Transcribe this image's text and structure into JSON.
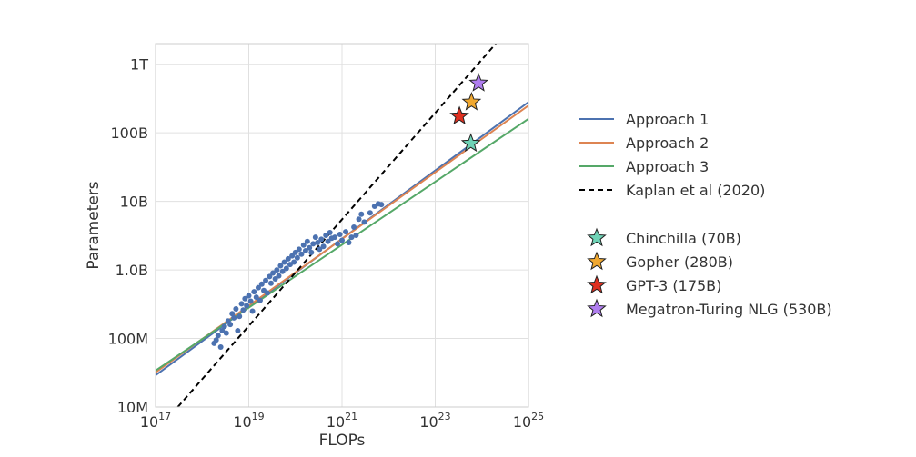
{
  "chart_data": {
    "type": "scatter",
    "xlabel": "FLOPs",
    "ylabel": "Parameters",
    "x_scale": "log",
    "y_scale": "log",
    "xlim": [
      1e+17,
      1e+25
    ],
    "ylim": [
      10000000.0,
      2000000000000.0
    ],
    "grid": true,
    "legend_position": "right",
    "x_ticks": [
      {
        "value": 1e+17,
        "base": "10",
        "exp": "17"
      },
      {
        "value": 1e+19,
        "base": "10",
        "exp": "19"
      },
      {
        "value": 1e+21,
        "base": "10",
        "exp": "21"
      },
      {
        "value": 1e+23,
        "base": "10",
        "exp": "23"
      },
      {
        "value": 1e+25,
        "base": "10",
        "exp": "25"
      }
    ],
    "y_ticks": [
      {
        "value": 10000000.0,
        "label": "10M"
      },
      {
        "value": 100000000.0,
        "label": "100M"
      },
      {
        "value": 1000000000.0,
        "label": "1.0B"
      },
      {
        "value": 10000000000.0,
        "label": "10B"
      },
      {
        "value": 100000000000.0,
        "label": "100B"
      },
      {
        "value": 1000000000000.0,
        "label": "1T"
      }
    ],
    "lines": [
      {
        "name": "Approach 1",
        "color": "#4c72b0",
        "dash": false,
        "points": [
          [
            1e+17,
            29000000.0
          ],
          [
            1e+25,
            280000000000.0
          ]
        ]
      },
      {
        "name": "Approach 2",
        "color": "#dd8452",
        "dash": false,
        "points": [
          [
            1e+17,
            32000000.0
          ],
          [
            1e+25,
            250000000000.0
          ]
        ]
      },
      {
        "name": "Approach 3",
        "color": "#55a868",
        "dash": false,
        "points": [
          [
            1e+17,
            34000000.0
          ],
          [
            1e+25,
            160000000000.0
          ]
        ]
      },
      {
        "name": "Kaplan et al (2020)",
        "color": "#000000",
        "dash": true,
        "points": [
          [
            3e+17,
            10000000.0
          ],
          [
            2e+24,
            2000000000000.0
          ]
        ]
      }
    ],
    "models": [
      {
        "name": "Chinchilla (70B)",
        "x": 5.8e+23,
        "y": 70000000000.0,
        "color": "#6fd3b6"
      },
      {
        "name": "Gopher (280B)",
        "x": 6e+23,
        "y": 280000000000.0,
        "color": "#f0a830"
      },
      {
        "name": "GPT-3 (175B)",
        "x": 3.3e+23,
        "y": 175000000000.0,
        "color": "#e03020"
      },
      {
        "name": "Megatron-Turing NLG (530B)",
        "x": 8.5e+23,
        "y": 530000000000.0,
        "color": "#b07ef0"
      }
    ],
    "scatter_color": "#4c72b0",
    "scatter_points": [
      [
        1.8e+18,
        85000000.0
      ],
      [
        2e+18,
        95000000.0
      ],
      [
        2.2e+18,
        110000000.0
      ],
      [
        2.5e+18,
        75000000.0
      ],
      [
        2.7e+18,
        130000000.0
      ],
      [
        3e+18,
        150000000.0
      ],
      [
        3.3e+18,
        120000000.0
      ],
      [
        3.6e+18,
        180000000.0
      ],
      [
        4e+18,
        160000000.0
      ],
      [
        4.4e+18,
        230000000.0
      ],
      [
        4.8e+18,
        200000000.0
      ],
      [
        5.3e+18,
        270000000.0
      ],
      [
        5.8e+18,
        130000000.0
      ],
      [
        6.3e+18,
        210000000.0
      ],
      [
        7e+18,
        320000000.0
      ],
      [
        7.6e+18,
        260000000.0
      ],
      [
        8.3e+18,
        380000000.0
      ],
      [
        9e+18,
        300000000.0
      ],
      [
        1e+19,
        420000000.0
      ],
      [
        1.1e+19,
        350000000.0
      ],
      [
        1.2e+19,
        250000000.0
      ],
      [
        1.3e+19,
        480000000.0
      ],
      [
        1.45e+19,
        400000000.0
      ],
      [
        1.6e+19,
        550000000.0
      ],
      [
        1.75e+19,
        360000000.0
      ],
      [
        1.9e+19,
        620000000.0
      ],
      [
        2.1e+19,
        500000000.0
      ],
      [
        2.3e+19,
        700000000.0
      ],
      [
        2.5e+19,
        460000000.0
      ],
      [
        2.8e+19,
        800000000.0
      ],
      [
        3e+19,
        640000000.0
      ],
      [
        3.3e+19,
        900000000.0
      ],
      [
        3.7e+19,
        740000000.0
      ],
      [
        4e+19,
        1000000000.0
      ],
      [
        4.4e+19,
        820000000.0
      ],
      [
        4.8e+19,
        1150000000.0
      ],
      [
        5.3e+19,
        950000000.0
      ],
      [
        5.8e+19,
        1300000000.0
      ],
      [
        6.4e+19,
        1050000000.0
      ],
      [
        7e+19,
        1450000000.0
      ],
      [
        7.7e+19,
        1200000000.0
      ],
      [
        8.5e+19,
        1600000000.0
      ],
      [
        9.3e+19,
        1300000000.0
      ],
      [
        1e+20,
        1800000000.0
      ],
      [
        1.1e+20,
        1500000000.0
      ],
      [
        1.2e+20,
        2000000000.0
      ],
      [
        1.35e+20,
        1700000000.0
      ],
      [
        1.5e+20,
        2300000000.0
      ],
      [
        1.65e+20,
        1900000000.0
      ],
      [
        1.8e+20,
        2600000000.0
      ],
      [
        2e+20,
        2100000000.0
      ],
      [
        2.2e+20,
        1800000000.0
      ],
      [
        2.4e+20,
        2400000000.0
      ],
      [
        2.7e+20,
        3000000000.0
      ],
      [
        3e+20,
        2500000000.0
      ],
      [
        3.3e+20,
        2000000000.0
      ],
      [
        3.6e+20,
        2800000000.0
      ],
      [
        4e+20,
        2200000000.0
      ],
      [
        4.5e+20,
        3200000000.0
      ],
      [
        5e+20,
        2600000000.0
      ],
      [
        5.5e+20,
        3500000000.0
      ],
      [
        6e+20,
        2900000000.0
      ],
      [
        7e+20,
        3000000000.0
      ],
      [
        8e+20,
        2400000000.0
      ],
      [
        9e+20,
        3300000000.0
      ],
      [
        1e+21,
        2700000000.0
      ],
      [
        1.2e+21,
        3600000000.0
      ],
      [
        1.4e+21,
        2500000000.0
      ],
      [
        1.6e+21,
        3000000000.0
      ],
      [
        1.8e+21,
        4200000000.0
      ],
      [
        2e+21,
        3200000000.0
      ],
      [
        2.3e+21,
        5500000000.0
      ],
      [
        2.6e+21,
        6500000000.0
      ],
      [
        3e+21,
        5000000000.0
      ],
      [
        4e+21,
        6800000000.0
      ],
      [
        5e+21,
        8500000000.0
      ],
      [
        6e+21,
        9200000000.0
      ],
      [
        7e+21,
        9000000000.0
      ]
    ]
  }
}
